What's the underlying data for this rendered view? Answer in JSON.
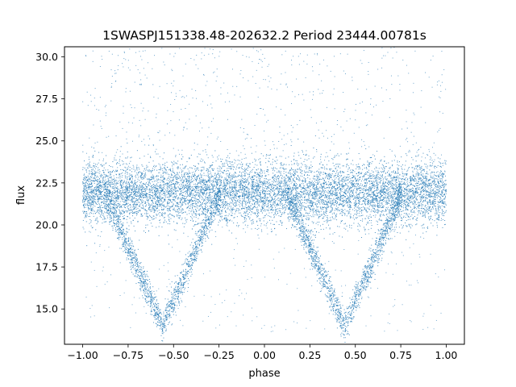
{
  "chart_data": {
    "type": "scatter",
    "title": "1SWASPJ151338.48-202632.2 Period 23444.00781s",
    "xlabel": "phase",
    "ylabel": "flux",
    "xlim": [
      -1.1,
      1.1
    ],
    "ylim": [
      12.9,
      30.6
    ],
    "xticks": [
      -1.0,
      -0.75,
      -0.5,
      -0.25,
      0.0,
      0.25,
      0.5,
      0.75,
      1.0
    ],
    "xtick_labels": [
      "−1.00",
      "−0.75",
      "−0.50",
      "−0.25",
      "0.00",
      "0.25",
      "0.50",
      "0.75",
      "1.00"
    ],
    "yticks": [
      15.0,
      17.5,
      20.0,
      22.5,
      25.0,
      27.5,
      30.0
    ],
    "ytick_labels": [
      "15.0",
      "17.5",
      "20.0",
      "22.5",
      "25.0",
      "27.5",
      "30.0"
    ],
    "grid": false,
    "marker_color": "#1f77b4",
    "series": [
      {
        "baseline_flux": 21.9,
        "phase_range": [
          -1.0,
          1.0
        ],
        "dip_minimum_flux": 14.0,
        "dip_centers": [
          -0.56,
          0.44
        ],
        "dip_half_width": 0.32,
        "samples": [
          {
            "x": -1.0,
            "y": 21.9
          },
          {
            "x": -0.88,
            "y": 21.9
          },
          {
            "x": -0.8,
            "y": 20.2
          },
          {
            "x": -0.7,
            "y": 17.8
          },
          {
            "x": -0.6,
            "y": 15.0
          },
          {
            "x": -0.56,
            "y": 14.0
          },
          {
            "x": -0.5,
            "y": 15.3
          },
          {
            "x": -0.4,
            "y": 17.9
          },
          {
            "x": -0.3,
            "y": 20.3
          },
          {
            "x": -0.24,
            "y": 21.9
          },
          {
            "x": 0.0,
            "y": 21.9
          },
          {
            "x": 0.12,
            "y": 21.9
          },
          {
            "x": 0.2,
            "y": 20.2
          },
          {
            "x": 0.3,
            "y": 17.8
          },
          {
            "x": 0.4,
            "y": 15.0
          },
          {
            "x": 0.44,
            "y": 14.0
          },
          {
            "x": 0.5,
            "y": 15.3
          },
          {
            "x": 0.6,
            "y": 17.9
          },
          {
            "x": 0.7,
            "y": 20.3
          },
          {
            "x": 0.76,
            "y": 21.9
          },
          {
            "x": 1.0,
            "y": 21.9
          }
        ]
      }
    ]
  }
}
